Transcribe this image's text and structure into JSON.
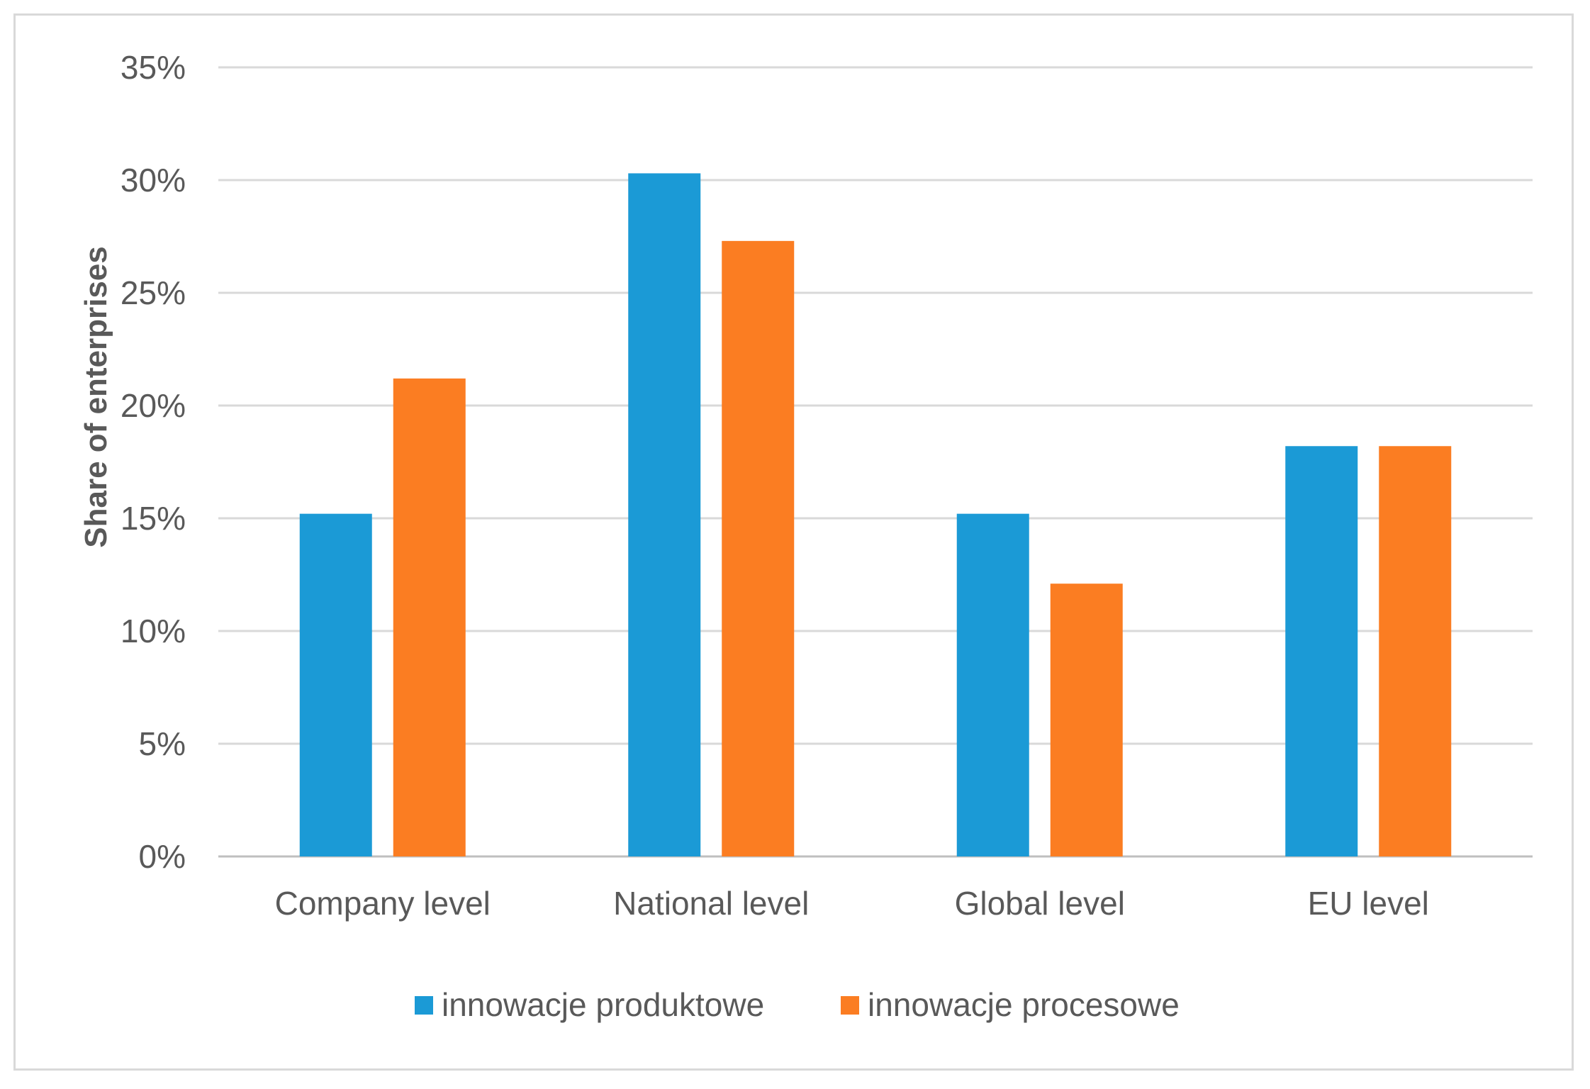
{
  "chart_data": {
    "type": "bar",
    "title": "",
    "xlabel": "",
    "ylabel": "Share of enterprises",
    "categories": [
      "Company level",
      "National level",
      "Global level",
      "EU level"
    ],
    "series": [
      {
        "name": "innowacje produktowe",
        "color": "#1b9ad6",
        "values": [
          15.2,
          30.3,
          15.2,
          18.2
        ]
      },
      {
        "name": "innowacje procesowe",
        "color": "#fb7d22",
        "values": [
          21.2,
          27.3,
          12.1,
          18.2
        ]
      }
    ],
    "ylim": [
      0,
      35
    ],
    "yticks": [
      0,
      5,
      10,
      15,
      20,
      25,
      30,
      35
    ],
    "ytick_labels": [
      "0%",
      "5%",
      "10%",
      "15%",
      "20%",
      "25%",
      "30%",
      "35%"
    ],
    "grid": true,
    "legend_position": "bottom"
  }
}
